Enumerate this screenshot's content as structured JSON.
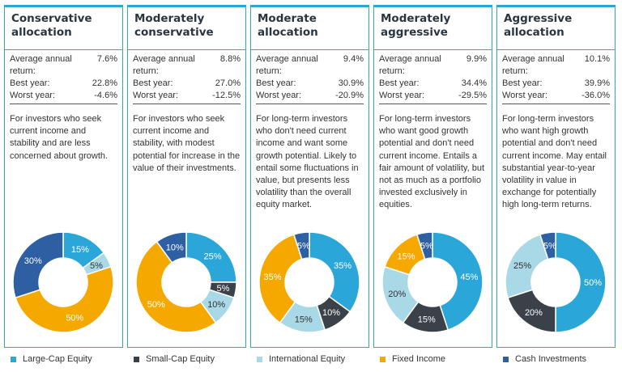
{
  "legend": [
    {
      "label": "Large-Cap Equity",
      "color": "#2aa6d8"
    },
    {
      "label": "Small-Cap Equity",
      "color": "#3a4149"
    },
    {
      "label": "International Equity",
      "color": "#a9d8e6"
    },
    {
      "label": "Fixed Income",
      "color": "#f5a800"
    },
    {
      "label": "Cash Investments",
      "color": "#2e5fa3"
    }
  ],
  "stat_labels": {
    "avg": "Average annual return:",
    "best": "Best year:",
    "worst": "Worst year:"
  },
  "chart_data": [
    {
      "type": "pie",
      "title": "Conservative allocation",
      "stats": {
        "avg": "7.6%",
        "best": "22.8%",
        "worst": "-4.6%"
      },
      "description": "For investors who seek current income and stability and are less concerned about growth.",
      "slices": [
        {
          "category": "Large-Cap Equity",
          "value": 15,
          "label": "15%"
        },
        {
          "category": "International Equity",
          "value": 5,
          "label": "5%"
        },
        {
          "category": "Fixed Income",
          "value": 50,
          "label": "50%"
        },
        {
          "category": "Cash Investments",
          "value": 30,
          "label": "30%"
        }
      ]
    },
    {
      "type": "pie",
      "title": "Moderately conservative",
      "stats": {
        "avg": "8.8%",
        "best": "27.0%",
        "worst": "-12.5%"
      },
      "description": "For investors who seek current income and stability, with modest potential for increase in the value of their investments.",
      "slices": [
        {
          "category": "Large-Cap Equity",
          "value": 25,
          "label": "25%"
        },
        {
          "category": "Small-Cap Equity",
          "value": 5,
          "label": "5%"
        },
        {
          "category": "International Equity",
          "value": 10,
          "label": "10%"
        },
        {
          "category": "Fixed Income",
          "value": 50,
          "label": "50%"
        },
        {
          "category": "Cash Investments",
          "value": 10,
          "label": "10%"
        }
      ]
    },
    {
      "type": "pie",
      "title": "Moderate allocation",
      "stats": {
        "avg": "9.4%",
        "best": "30.9%",
        "worst": "-20.9%"
      },
      "description": "For long-term investors who don't need current income and want some growth potential. Likely to entail some fluctuations in value, but presents less volatility than the overall equity market.",
      "slices": [
        {
          "category": "Large-Cap Equity",
          "value": 35,
          "label": "35%"
        },
        {
          "category": "Small-Cap Equity",
          "value": 10,
          "label": "10%"
        },
        {
          "category": "International Equity",
          "value": 15,
          "label": "15%"
        },
        {
          "category": "Fixed Income",
          "value": 35,
          "label": "35%"
        },
        {
          "category": "Cash Investments",
          "value": 5,
          "label": "5%"
        }
      ]
    },
    {
      "type": "pie",
      "title": "Moderately aggressive",
      "stats": {
        "avg": "9.9%",
        "best": "34.4%",
        "worst": "-29.5%"
      },
      "description": "For long-term investors who want good growth potential and don't need current income. Entails a fair amount of volatility, but not as much as a portfolio invested exclusively in equities.",
      "slices": [
        {
          "category": "Large-Cap Equity",
          "value": 45,
          "label": "45%"
        },
        {
          "category": "Small-Cap Equity",
          "value": 15,
          "label": "15%"
        },
        {
          "category": "International Equity",
          "value": 20,
          "label": "20%"
        },
        {
          "category": "Fixed Income",
          "value": 15,
          "label": "15%"
        },
        {
          "category": "Cash Investments",
          "value": 5,
          "label": "5%"
        }
      ]
    },
    {
      "type": "pie",
      "title": "Aggressive allocation",
      "stats": {
        "avg": "10.1%",
        "best": "39.9%",
        "worst": "-36.0%"
      },
      "description": "For long-term investors who want high growth potential and don't need current income. May entail substantial year-to-year volatility in value in exchange for potentially high long-term returns.",
      "slices": [
        {
          "category": "Large-Cap Equity",
          "value": 50,
          "label": "50%"
        },
        {
          "category": "Small-Cap Equity",
          "value": 20,
          "label": "20%"
        },
        {
          "category": "International Equity",
          "value": 25,
          "label": "25%"
        },
        {
          "category": "Cash Investments",
          "value": 5,
          "label": "5%"
        }
      ]
    }
  ]
}
